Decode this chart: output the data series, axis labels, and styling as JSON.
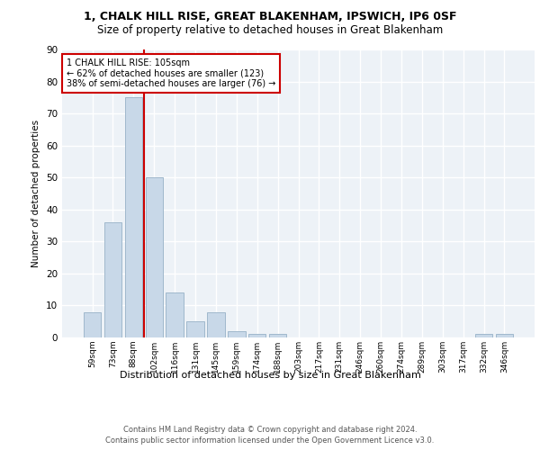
{
  "title1": "1, CHALK HILL RISE, GREAT BLAKENHAM, IPSWICH, IP6 0SF",
  "title2": "Size of property relative to detached houses in Great Blakenham",
  "xlabel": "Distribution of detached houses by size in Great Blakenham",
  "ylabel": "Number of detached properties",
  "footnote": "Contains HM Land Registry data © Crown copyright and database right 2024.\nContains public sector information licensed under the Open Government Licence v3.0.",
  "bar_labels": [
    "59sqm",
    "73sqm",
    "88sqm",
    "102sqm",
    "116sqm",
    "131sqm",
    "145sqm",
    "159sqm",
    "174sqm",
    "188sqm",
    "203sqm",
    "217sqm",
    "231sqm",
    "246sqm",
    "260sqm",
    "274sqm",
    "289sqm",
    "303sqm",
    "317sqm",
    "332sqm",
    "346sqm"
  ],
  "bar_values": [
    8,
    36,
    75,
    50,
    14,
    5,
    8,
    2,
    1,
    1,
    0,
    0,
    0,
    0,
    0,
    0,
    0,
    0,
    0,
    1,
    1
  ],
  "bar_color": "#c8d8e8",
  "bar_edge_color": "#a0b8cc",
  "property_line_x": 2.5,
  "property_line_color": "#cc0000",
  "annotation_text": "1 CHALK HILL RISE: 105sqm\n← 62% of detached houses are smaller (123)\n38% of semi-detached houses are larger (76) →",
  "annotation_box_color": "#cc0000",
  "ylim": [
    0,
    90
  ],
  "yticks": [
    0,
    10,
    20,
    30,
    40,
    50,
    60,
    70,
    80,
    90
  ],
  "background_color": "#edf2f7",
  "grid_color": "#ffffff",
  "fig_background": "#ffffff"
}
